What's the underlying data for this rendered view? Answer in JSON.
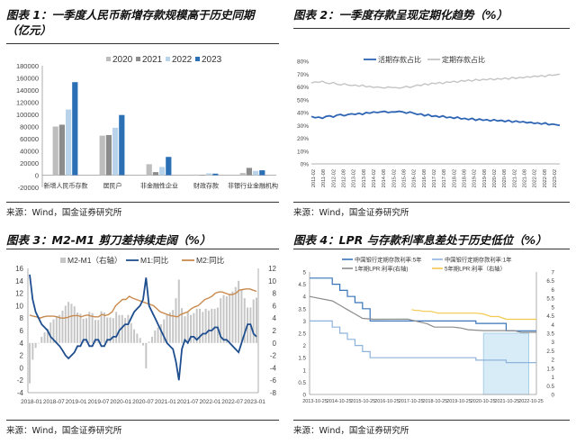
{
  "panels": [
    {
      "title": "图表 1：一季度人民币新增存款规模高于历史同期（亿元）",
      "source": "来源：Wind，国金证券研究所"
    },
    {
      "title": "图表 2：一季度存款呈现定期化趋势（%）",
      "source": "来源：Wind，国金证券研究所"
    },
    {
      "title": "图表 3：M2-M1 剪刀差持续走阔（%）",
      "source": "来源：Wind，国金证券研究所"
    },
    {
      "title": "图表 4：LPR 与存款利率息差处于历史低位（%）",
      "source": "来源：Wind，国金证券研究所"
    }
  ],
  "chart_data": [
    {
      "type": "bar",
      "categories": [
        "新增人民币存款",
        "居民户",
        "非金融性企业",
        "财政存款",
        "非银行业金融机构"
      ],
      "series": [
        {
          "name": "2020",
          "color": "#bdbdbd",
          "values": [
            80000,
            65000,
            18000,
            1000,
            3500
          ]
        },
        {
          "name": "2021",
          "color": "#8c8c8c",
          "values": [
            83000,
            66000,
            5000,
            500,
            12000
          ]
        },
        {
          "name": "2022",
          "color": "#b8d3ea",
          "values": [
            108000,
            78000,
            13500,
            3000,
            7000
          ]
        },
        {
          "name": "2023",
          "color": "#2b6fb5",
          "values": [
            153000,
            99000,
            30000,
            2500,
            8000
          ]
        }
      ],
      "ylim": [
        -20000,
        180000
      ],
      "yticks": [
        "-20000",
        "0",
        "20000",
        "40000",
        "60000",
        "80000",
        "100000",
        "120000",
        "140000",
        "160000",
        "180000"
      ],
      "legend": "top",
      "grid": false
    },
    {
      "type": "line",
      "series": [
        {
          "name": "活期存款占比",
          "color": "#2e64b4",
          "values": [
            37,
            36,
            36.5,
            35.5,
            37,
            37.5,
            36.5,
            38,
            38.5,
            37.5,
            38.5,
            39,
            38.5,
            39.5,
            38.5,
            40,
            39.5,
            40.5,
            40,
            40.5,
            41,
            40,
            40.5,
            40.5,
            41,
            40.5,
            39.5,
            40.5,
            39.5,
            38.5,
            39,
            37.5,
            38.5,
            37,
            37.5,
            36.5,
            37.5,
            36,
            36.5,
            35.5,
            36.5,
            35,
            35.5,
            34.5,
            35.5,
            34,
            35,
            34,
            34.5,
            33.5,
            34.5,
            33.5,
            34,
            33,
            34,
            32.5,
            33.5,
            32.5,
            33,
            32,
            32.5,
            31.5,
            32,
            31,
            32,
            30.5,
            31,
            30.5,
            30
          ]
        },
        {
          "name": "定期存款占比",
          "color": "#c4c4c4",
          "values": [
            63,
            64,
            63.5,
            64.5,
            63,
            62.5,
            63.5,
            62,
            61.5,
            62.5,
            61.5,
            61,
            61.5,
            60.5,
            61.5,
            60,
            60.5,
            59.5,
            60,
            59.5,
            59,
            60,
            59.5,
            59.5,
            59,
            59.5,
            60.5,
            59.5,
            60.5,
            61.5,
            61,
            62.5,
            61.5,
            63,
            62.5,
            63.5,
            62.5,
            64,
            63.5,
            64.5,
            63.5,
            65,
            64.5,
            65.5,
            64.5,
            66,
            65,
            66,
            65.5,
            66.5,
            65.5,
            66.5,
            66,
            67,
            66,
            67.5,
            66.5,
            67.5,
            67,
            68,
            67.5,
            68.5,
            68,
            69,
            68,
            69.5,
            69,
            69.5,
            70
          ]
        }
      ],
      "ylim": [
        0,
        80
      ],
      "yticks": [
        "0%",
        "10%",
        "20%",
        "30%",
        "40%",
        "50%",
        "60%",
        "70%",
        "80%"
      ],
      "xticks": [
        "2011-02",
        "2011-08",
        "2012-02",
        "2012-08",
        "2013-02",
        "2013-08",
        "2014-02",
        "2014-08",
        "2015-02",
        "2015-08",
        "2016-02",
        "2016-08",
        "2017-02",
        "2017-08",
        "2018-02",
        "2018-08",
        "2019-02",
        "2019-08",
        "2020-02",
        "2020-08",
        "2021-02",
        "2021-08",
        "2022-02",
        "2022-08",
        "2023-02"
      ],
      "legend": "top",
      "grid": false
    },
    {
      "type": "line",
      "series": [
        {
          "name": "M2-M1（右轴）",
          "color": "#c6c6c6",
          "axis": "right",
          "kind": "bar"
        },
        {
          "name": "M1:同比",
          "color": "#1f4e8f",
          "axis": "left",
          "values": [
            15,
            11,
            9,
            8,
            7,
            6.5,
            6,
            5,
            4.5,
            4,
            3.5,
            2.8,
            2,
            1.5,
            2,
            2.5,
            3.5,
            3.5,
            4.5,
            4.5,
            3.5,
            3.5,
            4.5,
            4.5,
            3.5,
            3.5,
            4.5,
            4.5,
            5,
            5,
            6,
            6.5,
            7,
            7,
            8,
            9,
            9.5,
            10,
            11,
            14.5,
            10,
            9,
            8,
            7,
            6,
            5,
            4,
            3.5,
            3,
            1,
            -2,
            3,
            4.5,
            4,
            5,
            5,
            4.5,
            5,
            5.5,
            5.5,
            6,
            6,
            6.5,
            6.5,
            5,
            4.5,
            4.5,
            4,
            3.5,
            3,
            2.5,
            4,
            5.5,
            7,
            7,
            5.5,
            5
          ]
        },
        {
          "name": "M2:同比",
          "color": "#c98a4e",
          "axis": "left",
          "values": [
            8.5,
            8.3,
            8.2,
            8,
            8.2,
            8.3,
            8.3,
            8.3,
            8.2,
            8,
            8,
            8.1,
            8.3,
            8.4,
            8.4,
            8.2,
            8.4,
            8.5,
            8.3,
            8.2,
            8.2,
            8.6,
            8.4,
            8.6,
            9,
            10,
            10.5,
            11,
            11,
            11.5,
            11.2,
            11,
            10.8,
            10.6,
            10.4,
            10.2,
            10,
            9.5,
            9,
            8.8,
            8.6,
            8.4,
            8.3,
            8.2,
            8.6,
            8.8,
            9,
            9.5,
            9.8,
            10,
            10.5,
            11,
            11.2,
            11.5,
            12,
            12.2,
            12.2,
            12,
            11.8,
            11.8,
            12,
            12.5,
            12.6,
            12.7,
            12.7,
            12.5,
            12.3
          ]
        }
      ],
      "ylim": [
        -4,
        16
      ],
      "yticks": [
        "-4",
        "-2",
        "0",
        "2",
        "4",
        "6",
        "8",
        "10",
        "12",
        "14",
        "16"
      ],
      "y2lim": [
        -8,
        12
      ],
      "y2ticks": [
        "-8",
        "-6",
        "-4",
        "-2",
        "0",
        "2",
        "4",
        "6",
        "8",
        "10",
        "12"
      ],
      "xticks": [
        "2018-01",
        "2018-07",
        "2019-01",
        "2019-07",
        "2020-01",
        "2020-07",
        "2021-01",
        "2021-07",
        "2022-01",
        "2022-07",
        "2023-01"
      ],
      "legend": "top",
      "grid": false
    },
    {
      "type": "line",
      "series": [
        {
          "name": "中国银行定期存款利率:5年",
          "color": "#3874b9",
          "axis": "left",
          "values": [
            [
              0,
              4.75
            ],
            [
              6,
              4.75
            ],
            [
              6,
              4.5
            ],
            [
              8,
              4.5
            ],
            [
              8,
              4.25
            ],
            [
              10,
              4.25
            ],
            [
              10,
              4.0
            ],
            [
              12,
              4.0
            ],
            [
              12,
              3.75
            ],
            [
              14,
              3.75
            ],
            [
              14,
              3.5
            ],
            [
              16,
              3.5
            ],
            [
              16,
              3.0
            ],
            [
              44,
              3.0
            ],
            [
              44,
              2.9
            ],
            [
              52,
              2.9
            ],
            [
              52,
              2.6
            ],
            [
              60,
              2.6
            ]
          ]
        },
        {
          "name": "中国银行定期存款利率:1年",
          "color": "#8db3dd",
          "axis": "left",
          "values": [
            [
              0,
              3.0
            ],
            [
              6,
              3.0
            ],
            [
              6,
              2.75
            ],
            [
              8,
              2.75
            ],
            [
              8,
              2.5
            ],
            [
              10,
              2.5
            ],
            [
              10,
              2.25
            ],
            [
              12,
              2.25
            ],
            [
              12,
              2.0
            ],
            [
              14,
              2.0
            ],
            [
              14,
              1.75
            ],
            [
              16,
              1.75
            ],
            [
              16,
              1.5
            ],
            [
              44,
              1.5
            ],
            [
              44,
              1.4
            ],
            [
              52,
              1.4
            ],
            [
              52,
              1.3
            ],
            [
              60,
              1.3
            ]
          ]
        },
        {
          "name": "1年期LPR:利率(右轴)",
          "color": "#8c8c8c",
          "axis": "right",
          "values": [
            [
              0,
              5.6
            ],
            [
              6,
              5.35
            ],
            [
              8,
              5.1
            ],
            [
              10,
              4.85
            ],
            [
              12,
              4.6
            ],
            [
              14,
              4.35
            ],
            [
              17,
              4.3
            ],
            [
              26,
              4.31
            ],
            [
              27,
              4.25
            ],
            [
              29,
              4.15
            ],
            [
              31,
              4.05
            ],
            [
              33,
              3.85
            ],
            [
              35,
              3.85
            ],
            [
              38,
              3.85
            ],
            [
              40,
              3.8
            ],
            [
              42,
              3.7
            ],
            [
              46,
              3.65
            ],
            [
              54,
              3.65
            ],
            [
              56,
              3.55
            ],
            [
              60,
              3.55
            ]
          ]
        },
        {
          "name": "5年期LPR:利率（右轴）",
          "color": "#f2c94c",
          "axis": "right",
          "values": [
            [
              27,
              4.85
            ],
            [
              28,
              4.8
            ],
            [
              29,
              4.8
            ],
            [
              30,
              4.75
            ],
            [
              32,
              4.75
            ],
            [
              34,
              4.65
            ],
            [
              44,
              4.65
            ],
            [
              46,
              4.6
            ],
            [
              48,
              4.45
            ],
            [
              50,
              4.45
            ],
            [
              52,
              4.3
            ],
            [
              54,
              4.3
            ],
            [
              56,
              4.3
            ],
            [
              60,
              4.3
            ]
          ]
        }
      ],
      "ylim": [
        0,
        5
      ],
      "yticks": [
        "0",
        "0.5",
        "1",
        "1.5",
        "2",
        "2.5",
        "3",
        "3.5",
        "4",
        "4.5",
        "5"
      ],
      "y2lim": [
        0,
        7
      ],
      "y2ticks": [
        "0",
        "0.5",
        "1",
        "1.5",
        "2",
        "2.5",
        "3",
        "3.5",
        "4",
        "4.5",
        "5",
        "5.5",
        "6",
        "6.5",
        "7"
      ],
      "xticks": [
        "2013-10-25",
        "2014-10-25",
        "2015-10-25",
        "2016-10-25",
        "2017-10-25",
        "2018-10-25",
        "2019-10-25",
        "2020-10-25",
        "2021-10-25",
        "2022-10-25"
      ],
      "legend": "top",
      "grid": false
    }
  ]
}
